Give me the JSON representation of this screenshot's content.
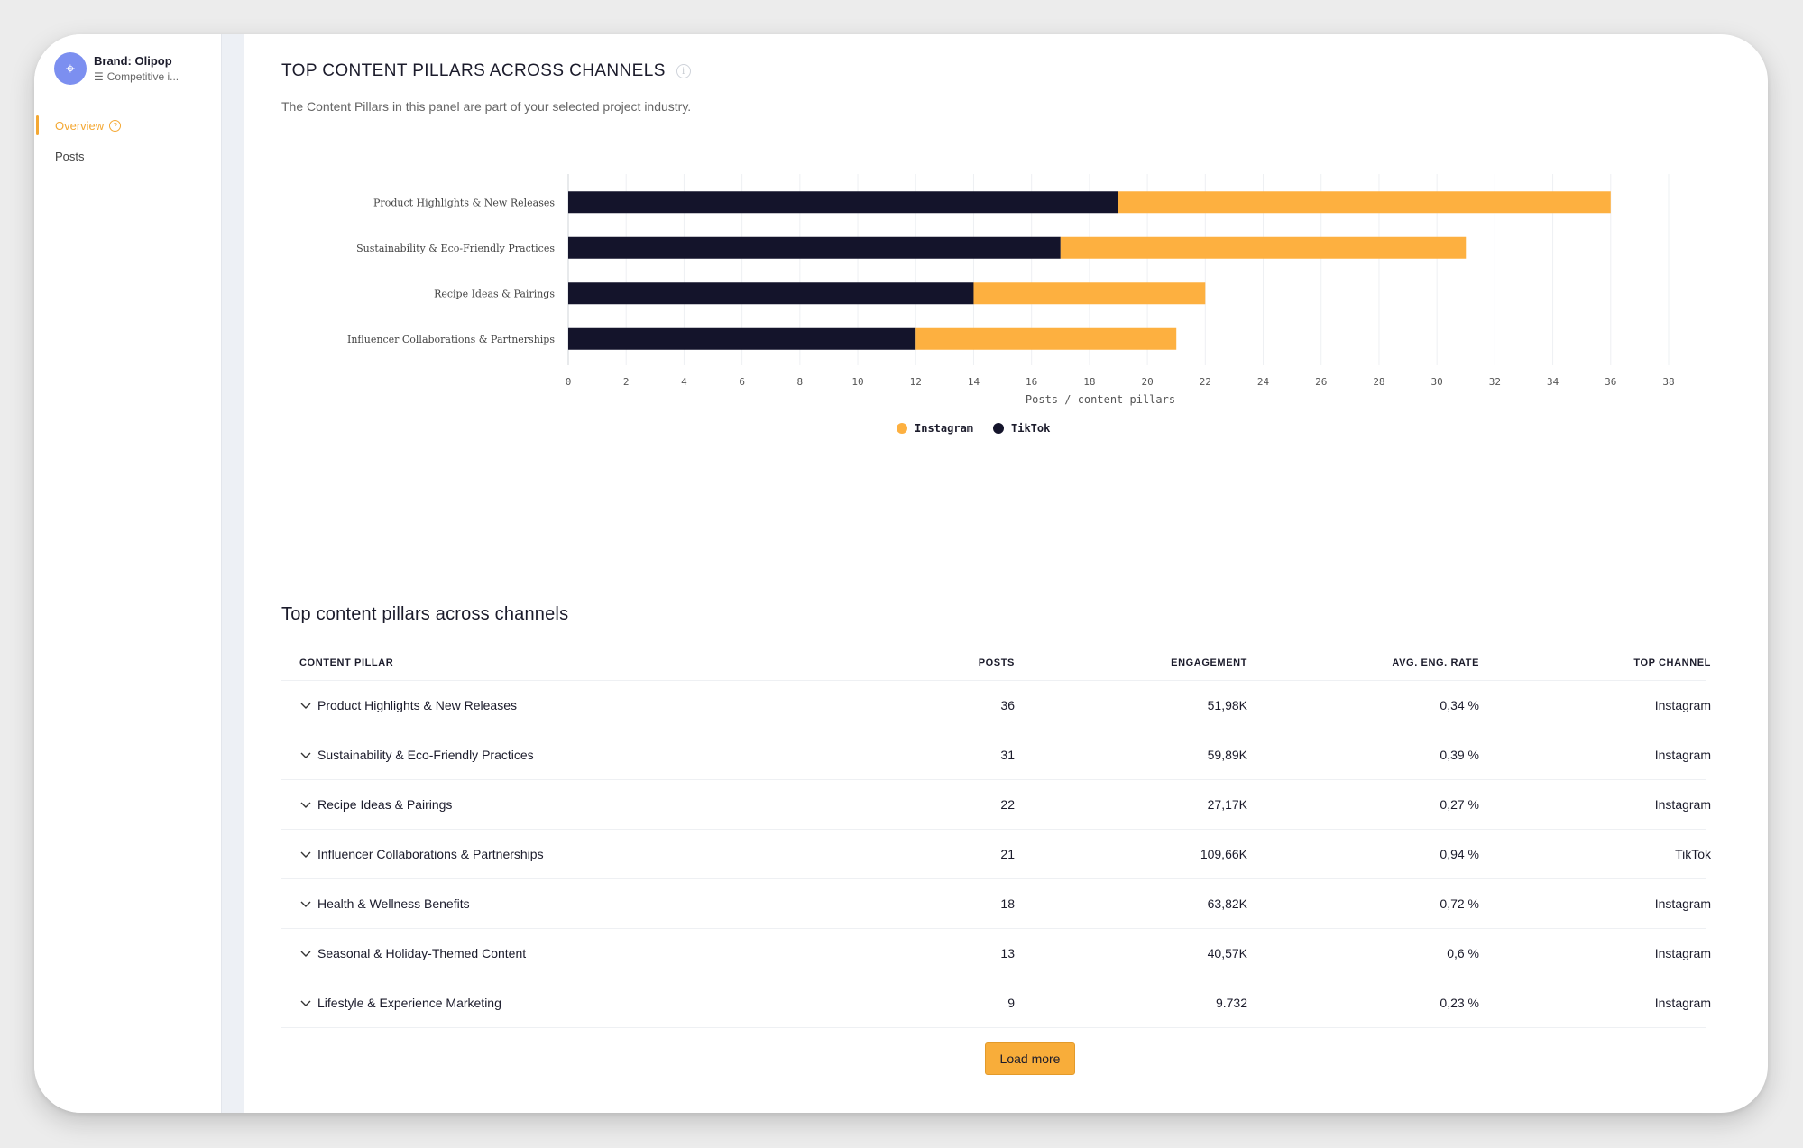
{
  "sidebar": {
    "brand_name": "Brand: Olipop",
    "brand_sub": "Competitive i...",
    "items": [
      {
        "label": "Overview",
        "active": true
      },
      {
        "label": "Posts",
        "active": false
      }
    ]
  },
  "panel": {
    "title": "TOP CONTENT PILLARS ACROSS CHANNELS",
    "subtitle": "The Content Pillars in this panel are part of your selected project industry."
  },
  "chart_data": {
    "type": "bar",
    "orientation": "horizontal",
    "stacked": true,
    "categories": [
      "Product Highlights & New Releases",
      "Sustainability & Eco-Friendly Practices",
      "Recipe Ideas & Pairings",
      "Influencer Collaborations & Partnerships"
    ],
    "series": [
      {
        "name": "TikTok",
        "color": "#14142b",
        "values": [
          19,
          17,
          14,
          12
        ]
      },
      {
        "name": "Instagram",
        "color": "#fdb040",
        "values": [
          17,
          14,
          8,
          9
        ]
      }
    ],
    "xlabel": "Posts / content pillars",
    "xlim": [
      0,
      38
    ],
    "xticks": [
      0,
      2,
      4,
      6,
      8,
      10,
      12,
      14,
      16,
      18,
      20,
      22,
      24,
      26,
      28,
      30,
      32,
      34,
      36,
      38
    ],
    "grid": true,
    "legend": {
      "position": "bottom-center",
      "items": [
        {
          "label": "Instagram",
          "color": "#fdb040"
        },
        {
          "label": "TikTok",
          "color": "#14142b"
        }
      ]
    }
  },
  "table": {
    "title": "Top content pillars across channels",
    "headers": {
      "pillar": "CONTENT PILLAR",
      "posts": "POSTS",
      "engagement": "ENGAGEMENT",
      "rate": "AVG. ENG. RATE",
      "channel": "TOP CHANNEL"
    },
    "rows": [
      {
        "pillar": "Product Highlights & New Releases",
        "posts": "36",
        "engagement": "51,98K",
        "rate": "0,34 %",
        "channel": "Instagram"
      },
      {
        "pillar": "Sustainability & Eco-Friendly Practices",
        "posts": "31",
        "engagement": "59,89K",
        "rate": "0,39 %",
        "channel": "Instagram"
      },
      {
        "pillar": "Recipe Ideas & Pairings",
        "posts": "22",
        "engagement": "27,17K",
        "rate": "0,27 %",
        "channel": "Instagram"
      },
      {
        "pillar": "Influencer Collaborations & Partnerships",
        "posts": "21",
        "engagement": "109,66K",
        "rate": "0,94 %",
        "channel": "TikTok"
      },
      {
        "pillar": "Health & Wellness Benefits",
        "posts": "18",
        "engagement": "63,82K",
        "rate": "0,72 %",
        "channel": "Instagram"
      },
      {
        "pillar": "Seasonal & Holiday-Themed Content",
        "posts": "13",
        "engagement": "40,57K",
        "rate": "0,6 %",
        "channel": "Instagram"
      },
      {
        "pillar": "Lifestyle & Experience Marketing",
        "posts": "9",
        "engagement": "9.732",
        "rate": "0,23 %",
        "channel": "Instagram"
      }
    ],
    "load_more_label": "Load more"
  }
}
